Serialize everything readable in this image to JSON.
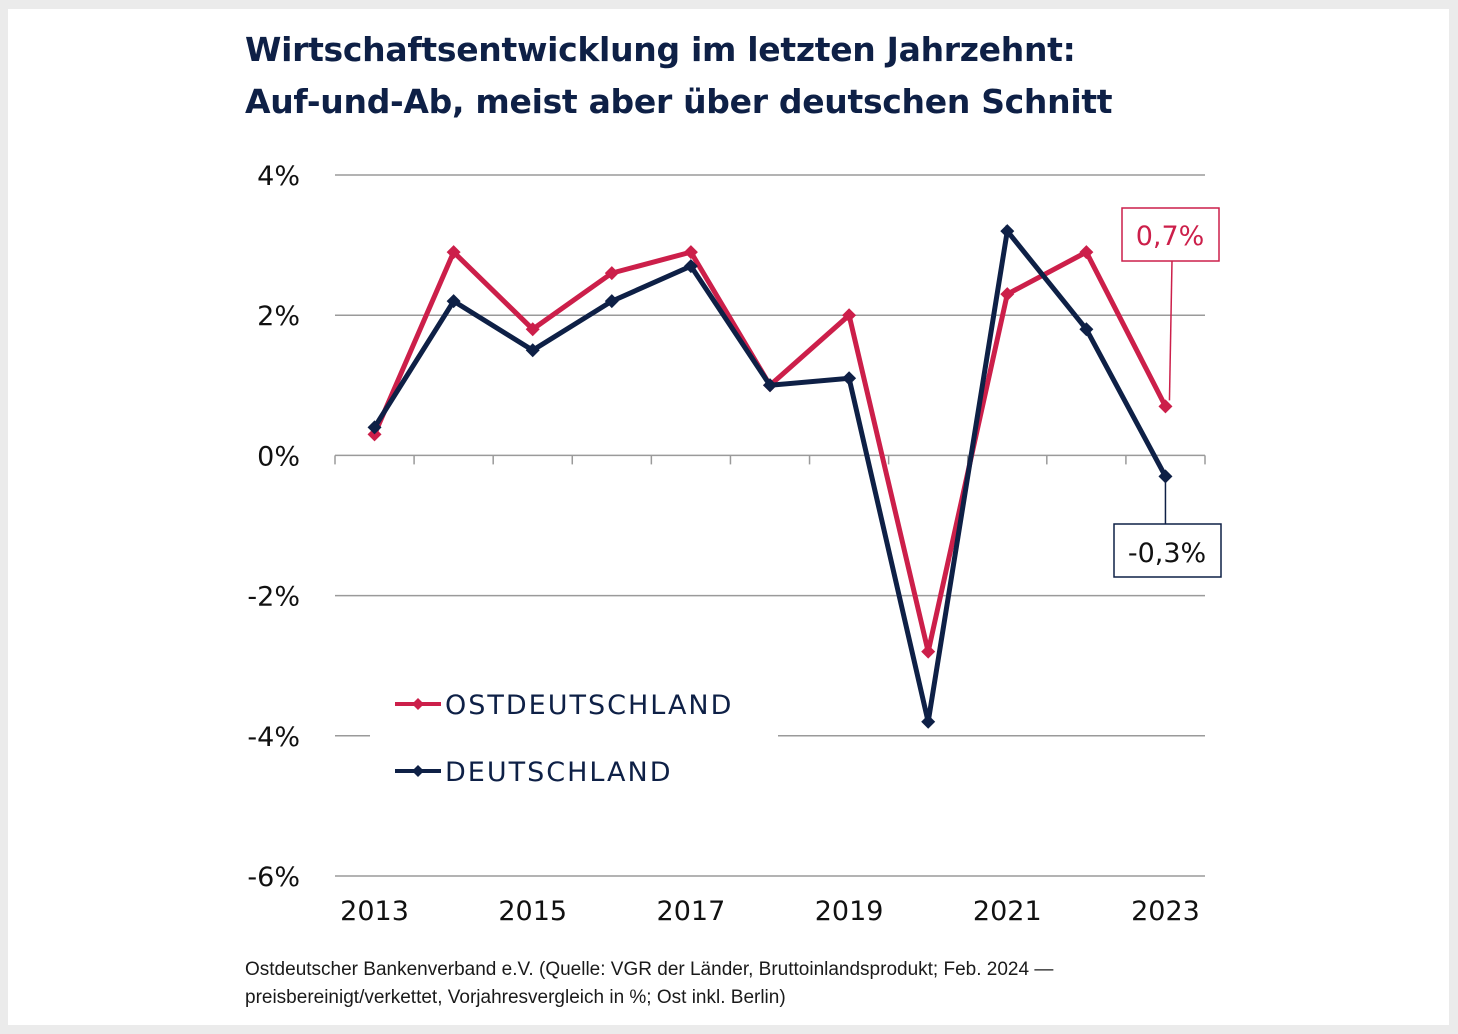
{
  "title": {
    "line1": "Wirtschaftsentwicklung im letzten Jahrzehnt:",
    "line2": "Auf-und-Ab, meist aber über deutschen Schnitt"
  },
  "footer": {
    "line1": "Ostdeutscher Bankenverband e.V. (Quelle: VGR der Länder, Bruttoinlandsprodukt; Feb. 2024 —",
    "line2": "preisbereinigt/verkettet, Vorjahresvergleich in %; Ost inkl. Berlin)"
  },
  "colors": {
    "ost": "#cc1f4a",
    "de": "#0e2046",
    "grid": "#9a9a9a"
  },
  "chart_data": {
    "type": "line",
    "title": "Wirtschaftsentwicklung im letzten Jahrzehnt: Auf-und-Ab, meist aber über deutschen Schnitt",
    "xlabel": "",
    "ylabel": "",
    "x": [
      2013,
      2014,
      2015,
      2016,
      2017,
      2018,
      2019,
      2020,
      2021,
      2022,
      2023
    ],
    "x_tick_labels": [
      "2013",
      "2015",
      "2017",
      "2019",
      "2021",
      "2023"
    ],
    "y_tick_values": [
      4,
      2,
      0,
      -2,
      -4,
      -6
    ],
    "y_tick_labels": [
      "4%",
      "2%",
      "0%",
      "-2%",
      "-4%",
      "-6%"
    ],
    "ylim": [
      -6,
      4
    ],
    "grid": "horizontal",
    "legend_position": "bottom-left",
    "series": [
      {
        "name": "OSTDEUTSCHLAND",
        "color": "#cc1f4a",
        "values": [
          0.3,
          2.9,
          1.8,
          2.6,
          2.9,
          1.0,
          2.0,
          -2.8,
          2.3,
          2.9,
          0.7
        ]
      },
      {
        "name": "DEUTSCHLAND",
        "color": "#0e2046",
        "values": [
          0.4,
          2.2,
          1.5,
          2.2,
          2.7,
          1.0,
          1.1,
          -3.8,
          3.2,
          1.8,
          -0.3
        ]
      }
    ],
    "annotations": [
      {
        "series": "OSTDEUTSCHLAND",
        "x": 2023,
        "text": "0,7%"
      },
      {
        "series": "DEUTSCHLAND",
        "x": 2023,
        "text": "-0,3%"
      }
    ]
  }
}
